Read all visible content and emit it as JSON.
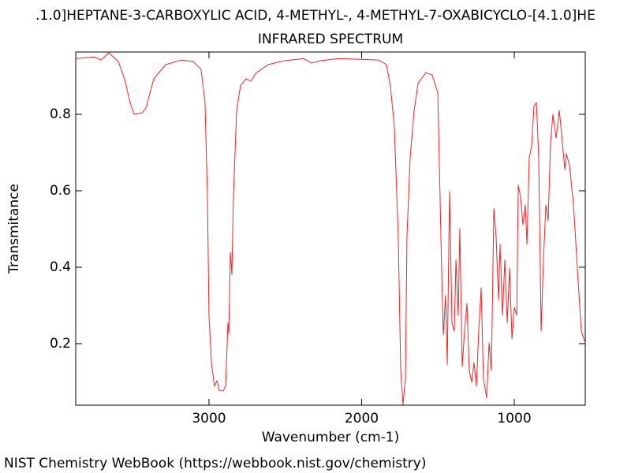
{
  "chart_data": {
    "type": "line",
    "title": ".1.0]HEPTANE-3-CARBOXYLIC ACID, 4-METHYL-, 4-METHYL-7-OXABICYCLO-[4.1.0]HE",
    "subtitle": "INFRARED SPECTRUM",
    "xlabel": "Wavenumber (cm-1)",
    "ylabel": "Transmitance",
    "footer": "NIST Chemistry WebBook (https://webbook.nist.gov/chemistry)",
    "color": "#e8262a",
    "xlim": [
      3873,
      535
    ],
    "xticks": [
      3000,
      2000,
      1000
    ],
    "ylim": [
      0.039,
      0.963
    ],
    "yticks": [
      0.2,
      0.4,
      0.6,
      0.8
    ],
    "x": [
      3873,
      3749,
      3708,
      3656,
      3594,
      3553,
      3517,
      3491,
      3439,
      3413,
      3362,
      3284,
      3181,
      3103,
      3052,
      3026,
      3010,
      3000,
      2984,
      2964,
      2948,
      2933,
      2907,
      2891,
      2876,
      2870,
      2860,
      2850,
      2840,
      2819,
      2793,
      2757,
      2726,
      2690,
      2612,
      2509,
      2380,
      2328,
      2276,
      2147,
      1889,
      1837,
      1811,
      1786,
      1760,
      1744,
      1729,
      1713,
      1703,
      1682,
      1656,
      1630,
      1579,
      1538,
      1501,
      1475,
      1465,
      1450,
      1439,
      1424,
      1408,
      1393,
      1382,
      1367,
      1357,
      1341,
      1326,
      1310,
      1295,
      1279,
      1264,
      1248,
      1233,
      1217,
      1202,
      1181,
      1165,
      1150,
      1134,
      1119,
      1103,
      1093,
      1077,
      1062,
      1046,
      1031,
      1015,
      1000,
      984,
      974,
      959,
      943,
      928,
      917,
      902,
      886,
      871,
      855,
      840,
      824,
      809,
      793,
      778,
      762,
      747,
      726,
      705,
      685,
      669,
      659,
      638,
      612,
      587,
      561,
      535
    ],
    "values": [
      0.946,
      0.95,
      0.942,
      0.961,
      0.938,
      0.893,
      0.831,
      0.8,
      0.804,
      0.816,
      0.893,
      0.93,
      0.942,
      0.938,
      0.918,
      0.831,
      0.584,
      0.274,
      0.15,
      0.089,
      0.103,
      0.078,
      0.076,
      0.089,
      0.254,
      0.227,
      0.439,
      0.381,
      0.584,
      0.81,
      0.876,
      0.893,
      0.887,
      0.909,
      0.93,
      0.94,
      0.946,
      0.934,
      0.94,
      0.946,
      0.942,
      0.93,
      0.872,
      0.769,
      0.48,
      0.13,
      0.041,
      0.109,
      0.48,
      0.687,
      0.81,
      0.882,
      0.909,
      0.903,
      0.856,
      0.377,
      0.223,
      0.326,
      0.146,
      0.598,
      0.254,
      0.233,
      0.419,
      0.274,
      0.501,
      0.14,
      0.233,
      0.305,
      0.13,
      0.099,
      0.15,
      0.089,
      0.233,
      0.346,
      0.109,
      0.058,
      0.202,
      0.13,
      0.553,
      0.48,
      0.315,
      0.46,
      0.274,
      0.419,
      0.254,
      0.398,
      0.212,
      0.295,
      0.274,
      0.615,
      0.584,
      0.511,
      0.563,
      0.46,
      0.687,
      0.718,
      0.821,
      0.831,
      0.687,
      0.233,
      0.419,
      0.563,
      0.522,
      0.728,
      0.8,
      0.738,
      0.81,
      0.728,
      0.656,
      0.697,
      0.666,
      0.563,
      0.398,
      0.233,
      0.202
    ]
  }
}
